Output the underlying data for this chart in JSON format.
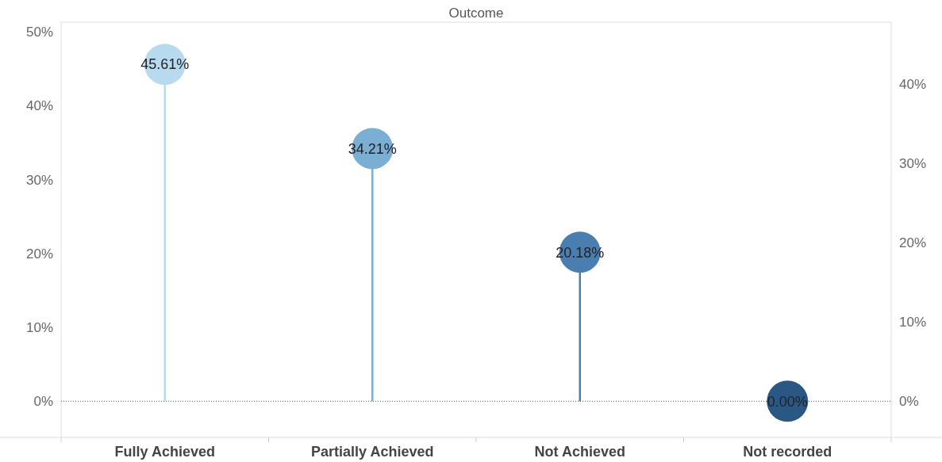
{
  "chart_data": {
    "type": "lollipop",
    "title": "Outcome",
    "categories": [
      "Fully Achieved",
      "Partially Achieved",
      "Not Achieved",
      "Not recorded"
    ],
    "series": [
      {
        "values": [
          45.61,
          34.21,
          20.18,
          0.0
        ],
        "colors": [
          "#b8daef",
          "#7aaed3",
          "#4b7eb0",
          "#2b5784"
        ]
      }
    ],
    "value_labels": [
      "45.61%",
      "34.21%",
      "20.18%",
      "0.00%"
    ],
    "ylim": [
      -4.9,
      51.1
    ],
    "yticks": [
      {
        "value": 0,
        "label": "0%"
      },
      {
        "value": 10,
        "label": "10%"
      },
      {
        "value": 20,
        "label": "20%"
      },
      {
        "value": 30,
        "label": "30%"
      },
      {
        "value": 40,
        "label": "40%"
      },
      {
        "value": 50,
        "label": "50%"
      }
    ],
    "y2lim": [
      -4.6,
      47.6
    ],
    "y2ticks": [
      {
        "value": 0,
        "label": "0%"
      },
      {
        "value": 10,
        "label": "10%"
      },
      {
        "value": 20,
        "label": "20%"
      },
      {
        "value": 30,
        "label": "30%"
      },
      {
        "value": 40,
        "label": "40%"
      }
    ],
    "ref_lines": [
      {
        "axis": "y",
        "value": 0,
        "line_style": "dotted",
        "color": "#555555"
      }
    ],
    "marker": "circle",
    "grid": false
  }
}
